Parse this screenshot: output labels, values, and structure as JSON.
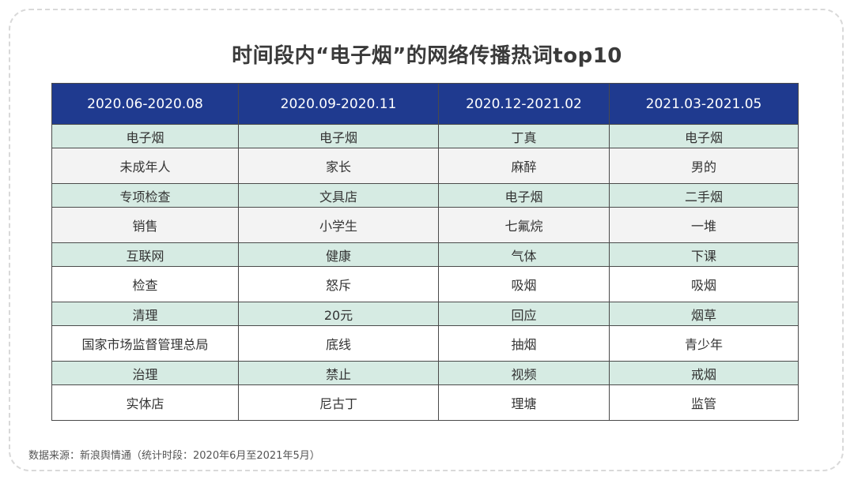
{
  "title": "时间段内“电子烟”的网络传播热词top10",
  "table": {
    "headers": [
      "2020.06-2020.08",
      "2020.09-2020.11",
      "2020.12-2021.02",
      "2021.03-2021.05"
    ],
    "rows": [
      [
        "电子烟",
        "电子烟",
        "丁真",
        "电子烟"
      ],
      [
        "未成年人",
        "家长",
        "麻醉",
        "男的"
      ],
      [
        "专项检查",
        "文具店",
        "电子烟",
        "二手烟"
      ],
      [
        "销售",
        "小学生",
        "七氟烷",
        "一堆"
      ],
      [
        "互联网",
        "健康",
        "气体",
        "下课"
      ],
      [
        "检查",
        "怒斥",
        "吸烟",
        "吸烟"
      ],
      [
        "清理",
        "20元",
        "回应",
        "烟草"
      ],
      [
        "国家市场监督管理总局",
        "底线",
        "抽烟",
        "青少年"
      ],
      [
        "治理",
        "禁止",
        "视频",
        "戒烟"
      ],
      [
        "实体店",
        "尼古丁",
        "理塘",
        "监管"
      ]
    ]
  },
  "source": "数据来源：新浪舆情通（统计时段：2020年6月至2021年5月）",
  "colors": {
    "header_bg": "#1f3a8f",
    "green_row": "#d6ebe3",
    "gray_row": "#f3f3f3"
  }
}
